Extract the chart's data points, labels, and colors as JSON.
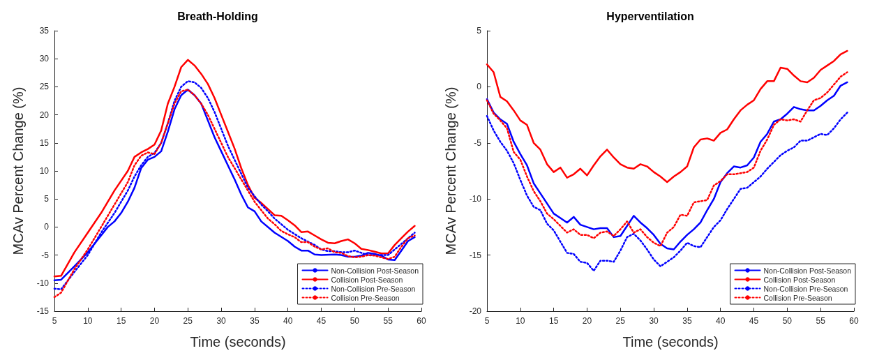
{
  "chart_data": [
    {
      "type": "line",
      "title": "Breath-Holding",
      "xlabel": "Time (seconds)",
      "ylabel": "MCAv Percent Change (%)",
      "xlim": [
        5,
        60
      ],
      "xticks": [
        5,
        10,
        15,
        20,
        25,
        30,
        35,
        40,
        45,
        50,
        55,
        60
      ],
      "ylim": [
        -15,
        35
      ],
      "yticks": [
        -15,
        -10,
        -5,
        0,
        5,
        10,
        15,
        20,
        25,
        30,
        35
      ],
      "grid": false,
      "legend": "bottom right",
      "marker": "none",
      "series": [
        {
          "name": "Non-Collision Post-Season",
          "color": "#0000ff",
          "line_style": "solid",
          "x": [
            5,
            6,
            8,
            10,
            12,
            13,
            14,
            15,
            16,
            17,
            18,
            19,
            20,
            21,
            22,
            23,
            24,
            25,
            26,
            27,
            28,
            29,
            30,
            31,
            32,
            33,
            34,
            35,
            36,
            38,
            40,
            41,
            42,
            43,
            44,
            45,
            47,
            48,
            49,
            50,
            51,
            52,
            53,
            54,
            55,
            56,
            57,
            58,
            59
          ],
          "values": [
            -9.5,
            -9.4,
            -7,
            -4.5,
            -1.5,
            0,
            1,
            2.5,
            4.5,
            7,
            10.5,
            12,
            12.5,
            13.5,
            17,
            21,
            23.5,
            24.5,
            23.5,
            22,
            19,
            16,
            13.5,
            11,
            8.5,
            5.8,
            3.5,
            2.8,
            1,
            -1,
            -2.5,
            -3.5,
            -4.2,
            -4.2,
            -4.9,
            -5,
            -4.9,
            -5,
            -5.3,
            -5.3,
            -5.1,
            -4.6,
            -4.8,
            -5.1,
            -5.8,
            -5.9,
            -4.2,
            -2.5,
            -1.8
          ]
        },
        {
          "name": "Collision Post-Season",
          "color": "#ff0000",
          "line_style": "solid",
          "x": [
            5,
            6,
            8,
            10,
            12,
            14,
            16,
            17,
            18,
            19,
            20,
            21,
            22,
            23,
            24,
            25,
            26,
            27,
            28,
            29,
            30,
            31,
            32,
            33,
            34,
            35,
            36,
            37,
            38,
            39,
            40,
            41,
            42,
            43,
            44,
            45,
            46,
            47,
            48,
            49,
            50,
            51,
            52,
            53,
            54,
            55,
            56,
            57,
            58,
            59
          ],
          "values": [
            -8.8,
            -8.7,
            -4.5,
            -1,
            2.5,
            6.5,
            10,
            12.5,
            13.3,
            13.9,
            14.7,
            17.2,
            22,
            25,
            28.5,
            29.8,
            28.8,
            27.3,
            25.5,
            23,
            20,
            17,
            14,
            10.5,
            7.5,
            5.2,
            4.3,
            3.2,
            2.1,
            2,
            1.2,
            0.3,
            -0.9,
            -0.8,
            -1.5,
            -2.2,
            -2.8,
            -2.9,
            -2.5,
            -2.2,
            -2.9,
            -3.9,
            -4.1,
            -4.4,
            -4.7,
            -4.7,
            -3.2,
            -2,
            -0.8,
            0.2
          ]
        },
        {
          "name": "Non-Collision Pre-Season",
          "color": "#0000ff",
          "line_style": "dotted",
          "x": [
            5,
            6,
            8,
            10,
            12,
            14,
            16,
            17,
            18,
            19,
            20,
            21,
            22,
            23,
            24,
            25,
            26,
            27,
            28,
            29,
            30,
            31,
            32,
            33,
            34,
            35,
            36,
            37,
            38,
            40,
            42,
            44,
            45,
            46,
            47,
            48,
            49,
            50,
            51,
            52,
            53,
            54,
            55,
            56,
            57,
            58,
            59
          ],
          "values": [
            -11,
            -11.1,
            -8,
            -5,
            -1,
            2.5,
            6.5,
            9,
            11,
            12.5,
            13.2,
            15,
            18.5,
            22.5,
            25,
            26,
            25.8,
            24.8,
            23,
            20.5,
            17.5,
            14.5,
            12,
            9.5,
            7,
            5.5,
            4,
            2.8,
            1.5,
            -0.5,
            -2,
            -3.2,
            -4,
            -4.3,
            -4.3,
            -4.5,
            -4.5,
            -4.2,
            -4.6,
            -5,
            -5,
            -5,
            -5,
            -4,
            -3,
            -2,
            -1
          ]
        },
        {
          "name": "Collision Pre-Season",
          "color": "#ff0000",
          "line_style": "dotted",
          "x": [
            5,
            6,
            8,
            10,
            12,
            14,
            16,
            17,
            18,
            19,
            20,
            21,
            22,
            23,
            24,
            25,
            26,
            27,
            28,
            29,
            30,
            31,
            32,
            33,
            34,
            35,
            36,
            37,
            38,
            39,
            40,
            41,
            42,
            43,
            44,
            45,
            46,
            47,
            48,
            49,
            50,
            51,
            52,
            53,
            54,
            55,
            56,
            57,
            58,
            59
          ],
          "values": [
            -12.5,
            -11.7,
            -7.5,
            -4,
            0,
            4,
            8,
            11,
            12.7,
            13.3,
            13,
            15,
            18.5,
            22,
            24.2,
            24.5,
            23.5,
            22,
            20,
            17.5,
            15,
            12.5,
            10.5,
            8.5,
            6.5,
            4.5,
            3,
            1.5,
            0.5,
            -0.7,
            -1.3,
            -1.8,
            -2.7,
            -2.7,
            -3.5,
            -4,
            -3.8,
            -4.5,
            -4.6,
            -5.2,
            -5.4,
            -5.3,
            -5,
            -5.1,
            -5.4,
            -5.7,
            -5.3,
            -3.5,
            -2,
            -1.5
          ]
        }
      ]
    },
    {
      "type": "line",
      "title": "Hyperventilation",
      "xlabel": "Time (seconds)",
      "ylabel": "MCAv Percent Change (%)",
      "xlim": [
        5,
        60
      ],
      "xticks": [
        5,
        10,
        15,
        20,
        25,
        30,
        35,
        40,
        45,
        50,
        55,
        60
      ],
      "ylim": [
        -20,
        5
      ],
      "yticks": [
        -20,
        -15,
        -10,
        -5,
        0,
        5
      ],
      "grid": false,
      "legend": "bottom right",
      "marker": "none",
      "series": [
        {
          "name": "Non-Collision Post-Season",
          "color": "#0000ff",
          "line_style": "solid",
          "x": [
            5,
            6,
            7,
            8,
            9,
            10,
            11,
            12,
            13,
            14,
            15,
            16,
            17,
            18,
            19,
            20,
            21,
            22,
            23,
            24,
            25,
            26,
            27,
            28,
            29,
            30,
            31,
            32,
            33,
            34,
            35,
            36,
            37,
            38,
            39,
            40,
            41,
            42,
            43,
            44,
            45,
            46,
            47,
            48,
            49,
            50,
            51,
            52,
            53,
            54,
            55,
            56,
            57,
            58,
            59
          ],
          "values": [
            -1.1,
            -2.3,
            -2.9,
            -3.3,
            -4.9,
            -6,
            -7,
            -8.6,
            -9.5,
            -10.4,
            -11.3,
            -11.7,
            -12.1,
            -11.6,
            -12.3,
            -12.5,
            -12.7,
            -12.6,
            -12.6,
            -13.4,
            -13.3,
            -12.4,
            -11.5,
            -12.1,
            -12.6,
            -13.2,
            -14,
            -14.4,
            -14.5,
            -13.8,
            -13.2,
            -12.7,
            -12.1,
            -11,
            -10,
            -8.5,
            -7.7,
            -7.1,
            -7.2,
            -7,
            -6.3,
            -4.9,
            -4.2,
            -3.1,
            -2.9,
            -2.4,
            -1.8,
            -2,
            -2.1,
            -2.1,
            -1.7,
            -1.2,
            -0.8,
            0.1,
            0.4
          ]
        },
        {
          "name": "Collision Post-Season",
          "color": "#ff0000",
          "line_style": "solid",
          "x": [
            5,
            6,
            7,
            8,
            9,
            10,
            11,
            12,
            13,
            14,
            15,
            16,
            17,
            18,
            19,
            20,
            21,
            22,
            23,
            24,
            25,
            26,
            27,
            28,
            29,
            30,
            31,
            32,
            33,
            34,
            35,
            36,
            37,
            38,
            39,
            40,
            41,
            42,
            43,
            44,
            45,
            46,
            47,
            48,
            49,
            50,
            51,
            52,
            53,
            54,
            55,
            56,
            57,
            58,
            59
          ],
          "values": [
            2,
            1.3,
            -0.9,
            -1.3,
            -2.1,
            -3,
            -3.4,
            -5,
            -5.6,
            -6.9,
            -7.6,
            -7.2,
            -8.1,
            -7.8,
            -7.3,
            -7.9,
            -7,
            -6.2,
            -5.6,
            -6.3,
            -6.9,
            -7.2,
            -7.3,
            -6.9,
            -7.1,
            -7.6,
            -8,
            -8.5,
            -8,
            -7.6,
            -7.1,
            -5.4,
            -4.7,
            -4.6,
            -4.8,
            -4.1,
            -3.8,
            -2.9,
            -2.1,
            -1.6,
            -1.2,
            -0.2,
            0.5,
            0.5,
            1.7,
            1.6,
            1,
            0.5,
            0.4,
            0.8,
            1.5,
            1.9,
            2.3,
            2.9,
            3.2
          ]
        },
        {
          "name": "Non-Collision Pre-Season",
          "color": "#0000ff",
          "line_style": "dotted",
          "x": [
            5,
            6,
            7,
            8,
            9,
            10,
            11,
            12,
            13,
            14,
            15,
            16,
            17,
            18,
            19,
            20,
            21,
            22,
            23,
            24,
            25,
            26,
            27,
            28,
            29,
            30,
            31,
            32,
            33,
            34,
            35,
            36,
            37,
            38,
            39,
            40,
            41,
            42,
            43,
            44,
            45,
            46,
            47,
            48,
            49,
            50,
            51,
            52,
            53,
            54,
            55,
            56,
            57,
            58,
            59
          ],
          "values": [
            -2.6,
            -3.9,
            -4.9,
            -5.7,
            -6.8,
            -8.3,
            -9.7,
            -10.7,
            -11,
            -12.2,
            -12.8,
            -13.8,
            -14.8,
            -14.9,
            -15.6,
            -15.7,
            -16.4,
            -15.5,
            -15.5,
            -15.6,
            -14.6,
            -13.4,
            -13.1,
            -13.7,
            -14.5,
            -15.4,
            -16,
            -15.6,
            -15.2,
            -14.6,
            -13.9,
            -14.2,
            -14.3,
            -13.4,
            -12.5,
            -11.9,
            -10.9,
            -10,
            -9.1,
            -9,
            -8.5,
            -8,
            -7.3,
            -6.7,
            -6.1,
            -5.7,
            -5.4,
            -4.8,
            -4.8,
            -4.5,
            -4.2,
            -4.3,
            -3.7,
            -2.9,
            -2.3
          ]
        },
        {
          "name": "Collision Pre-Season",
          "color": "#ff0000",
          "line_style": "dotted",
          "x": [
            5,
            6,
            7,
            8,
            9,
            10,
            11,
            12,
            13,
            14,
            15,
            16,
            17,
            18,
            19,
            20,
            21,
            22,
            23,
            24,
            25,
            26,
            27,
            28,
            29,
            30,
            31,
            32,
            33,
            34,
            35,
            36,
            37,
            38,
            39,
            40,
            41,
            42,
            43,
            44,
            45,
            46,
            47,
            48,
            49,
            50,
            51,
            52,
            53,
            54,
            55,
            56,
            57,
            58,
            59
          ],
          "values": [
            -1.2,
            -2.4,
            -3,
            -3.7,
            -5.8,
            -6.5,
            -8,
            -9.3,
            -10.2,
            -11.3,
            -11.8,
            -12.4,
            -13,
            -12.7,
            -13.2,
            -13.2,
            -13.5,
            -13,
            -12.9,
            -13.3,
            -12.7,
            -12,
            -13,
            -12.7,
            -13.4,
            -13.9,
            -14.2,
            -13,
            -12.5,
            -11.4,
            -11.5,
            -10.3,
            -10.2,
            -10.1,
            -8.8,
            -8.4,
            -7.8,
            -7.8,
            -7.7,
            -7.6,
            -7.2,
            -5.7,
            -4.7,
            -3.4,
            -2.9,
            -3,
            -2.9,
            -3.1,
            -2.1,
            -1.2,
            -1,
            -0.5,
            0.2,
            0.9,
            1.3
          ]
        }
      ]
    }
  ]
}
